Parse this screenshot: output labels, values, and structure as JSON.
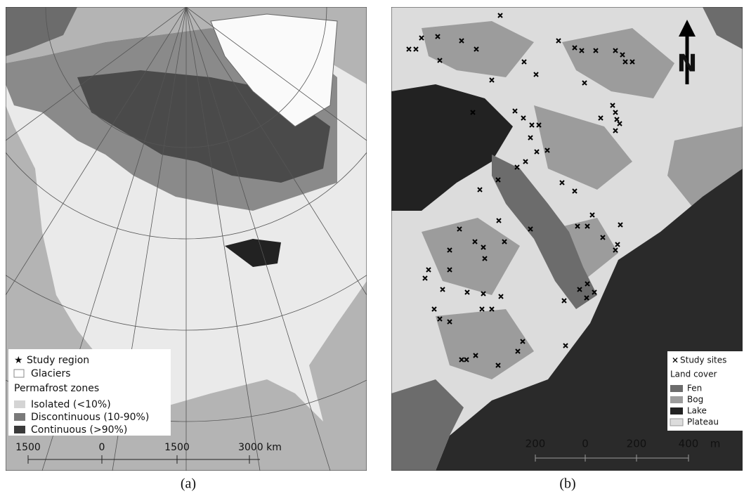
{
  "panels": [
    {
      "caption": "(a)",
      "legend": {
        "items": [
          "Study region",
          "Glaciers"
        ],
        "heading": "Permafrost zones",
        "zones": [
          "Isolated (<10%)",
          "Discontinuous (10-90%)",
          "Continuous (>90%)"
        ]
      },
      "scale_bar": [
        "1500",
        "0",
        "1500",
        "3000 km"
      ]
    },
    {
      "caption": "(b)",
      "north": "N",
      "legend": {
        "items": [
          "Study sites"
        ],
        "heading": "Land cover",
        "classes": [
          "Fen",
          "Bog",
          "Lake",
          "Plateau"
        ]
      },
      "scale_bar": [
        "200",
        "0",
        "200",
        "400",
        "m"
      ]
    }
  ]
}
